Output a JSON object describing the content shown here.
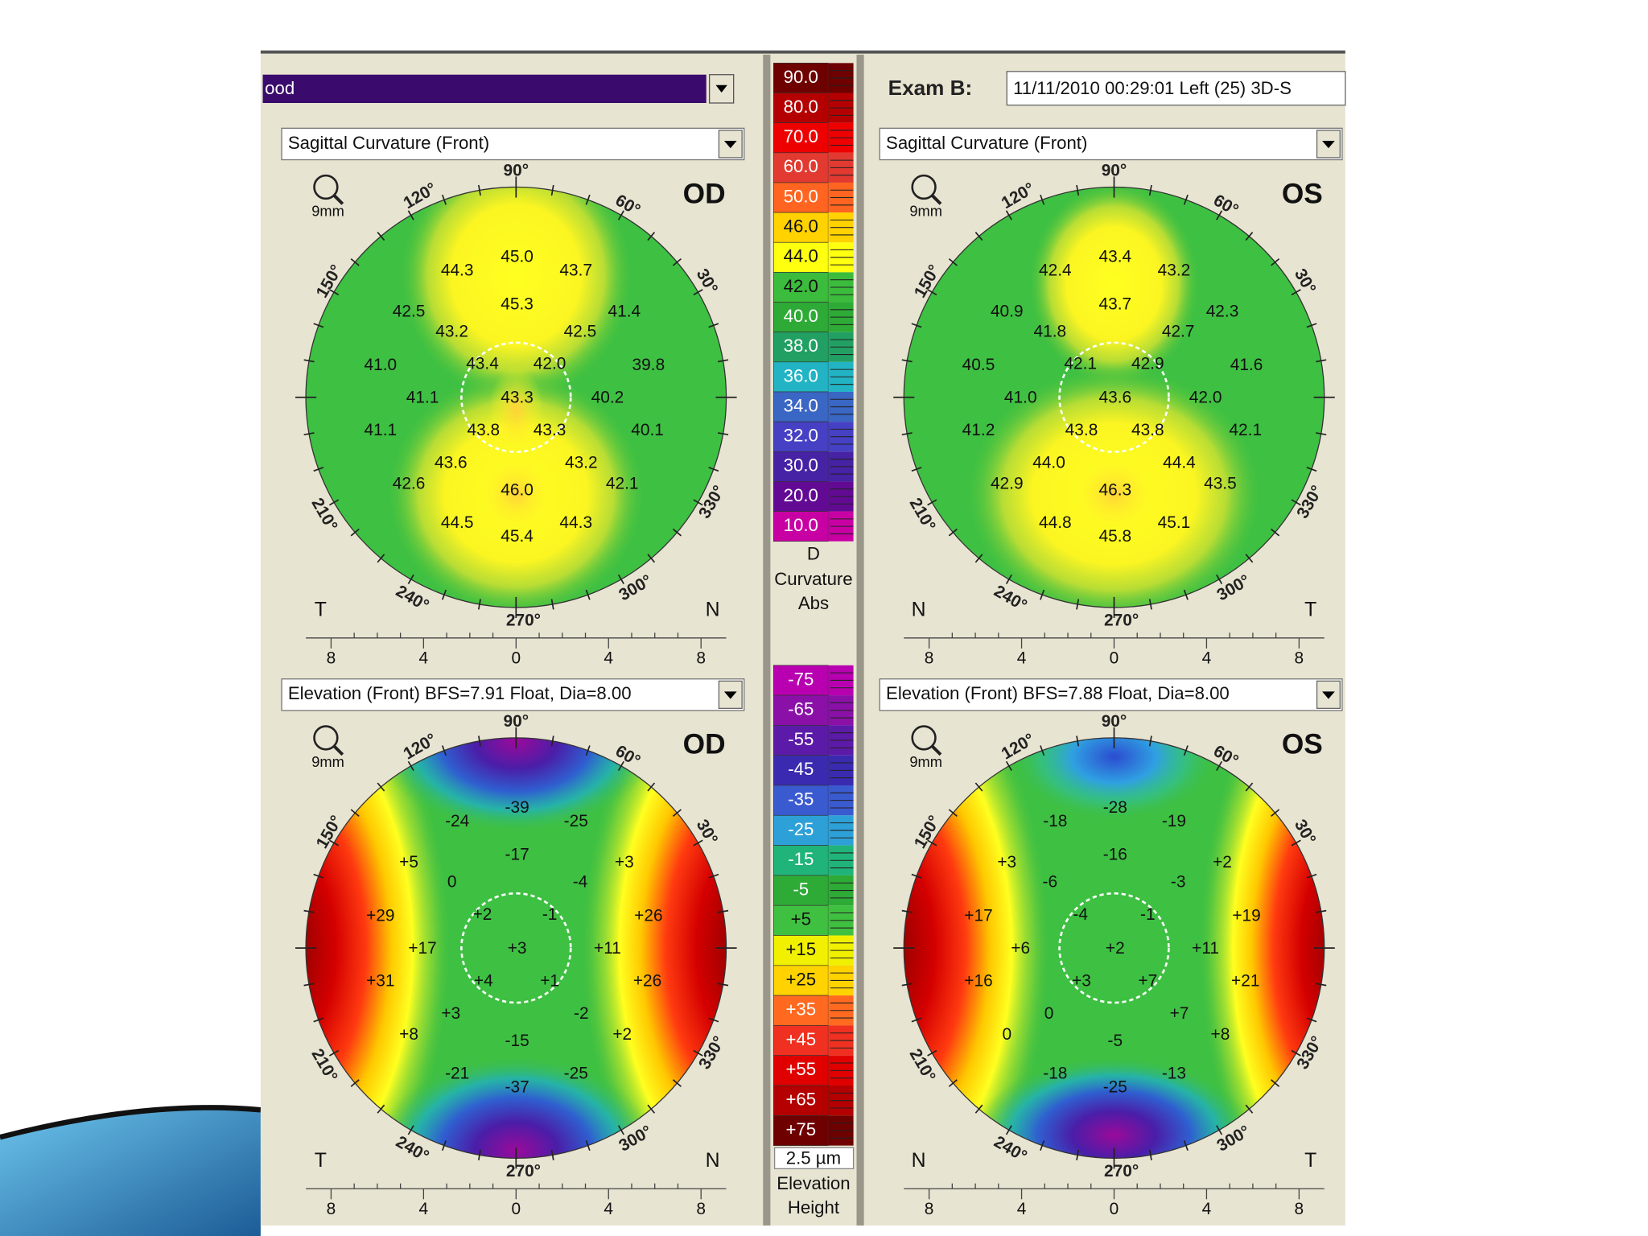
{
  "header": {
    "patient_field": "ood",
    "exam_label": "Exam B:",
    "exam_field": "11/11/2010  00:29:01  Left   (25) 3D-S"
  },
  "maps": [
    {
      "dropdown": "Sagittal Curvature (Front)",
      "eye": "OD",
      "zoom": "9mm",
      "corner_left": "T",
      "corner_right": "N",
      "angles": [
        "90°",
        "120°",
        "60°",
        "150°",
        "30°",
        "210°",
        "330°",
        "240°",
        "300°",
        "270°"
      ],
      "scale_ticks": [
        "8",
        "4",
        "0",
        "4",
        "8"
      ],
      "values": [
        "44.3",
        "45.0",
        "43.7",
        "45.3",
        "42.5",
        "41.4",
        "43.2",
        "42.5",
        "41.0",
        "43.4",
        "42.0",
        "39.8",
        "41.1",
        "43.3",
        "40.2",
        "41.1",
        "43.8",
        "43.3",
        "40.1",
        "43.6",
        "43.2",
        "42.6",
        "42.1",
        "46.0",
        "44.5",
        "45.4",
        "44.3"
      ]
    },
    {
      "dropdown": "Sagittal Curvature (Front)",
      "eye": "OS",
      "zoom": "9mm",
      "corner_left": "N",
      "corner_right": "T",
      "angles": [
        "90°",
        "120°",
        "60°",
        "150°",
        "30°",
        "210°",
        "330°",
        "240°",
        "300°",
        "270°"
      ],
      "scale_ticks": [
        "8",
        "4",
        "0",
        "4",
        "8"
      ],
      "values": [
        "42.4",
        "43.4",
        "43.2",
        "43.7",
        "40.9",
        "42.3",
        "41.8",
        "42.7",
        "40.5",
        "42.1",
        "42.9",
        "41.6",
        "41.0",
        "43.6",
        "42.0",
        "41.2",
        "43.8",
        "43.8",
        "42.1",
        "44.0",
        "44.4",
        "42.9",
        "43.5",
        "46.3",
        "44.8",
        "45.8",
        "45.1"
      ]
    },
    {
      "dropdown": "Elevation (Front)  BFS=7.91 Float, Dia=8.00",
      "eye": "OD",
      "zoom": "9mm",
      "corner_left": "T",
      "corner_right": "N",
      "angles": [
        "90°",
        "120°",
        "60°",
        "150°",
        "30°",
        "210°",
        "330°",
        "240°",
        "300°",
        "270°"
      ],
      "scale_ticks": [
        "8",
        "4",
        "0",
        "4",
        "8"
      ],
      "values": [
        "-24",
        "-39",
        "-25",
        "-17",
        "+5",
        "+3",
        "0",
        "-4",
        "+29",
        "+2",
        "-1",
        "+26",
        "+17",
        "+3",
        "+11",
        "+31",
        "+4",
        "+1",
        "+26",
        "+3",
        "-2",
        "+8",
        "+2",
        "-15",
        "-21",
        "-37",
        "-25"
      ]
    },
    {
      "dropdown": "Elevation (Front)  BFS=7.88 Float, Dia=8.00",
      "eye": "OS",
      "zoom": "9mm",
      "corner_left": "N",
      "corner_right": "T",
      "angles": [
        "90°",
        "120°",
        "60°",
        "150°",
        "30°",
        "210°",
        "330°",
        "240°",
        "300°",
        "270°"
      ],
      "scale_ticks": [
        "8",
        "4",
        "0",
        "4",
        "8"
      ],
      "values": [
        "-18",
        "-28",
        "-19",
        "-16",
        "+3",
        "+2",
        "-6",
        "-3",
        "+17",
        "-4",
        "-1",
        "+19",
        "+6",
        "+2",
        "+11",
        "+16",
        "+3",
        "+7",
        "+21",
        "0",
        "+7",
        "0",
        "+8",
        "-5",
        "-18",
        "-25",
        "-13"
      ]
    }
  ],
  "color_scales": [
    {
      "labels": [
        "90.0",
        "80.0",
        "70.0",
        "60.0",
        "50.0",
        "46.0",
        "44.0",
        "42.0",
        "40.0",
        "38.0",
        "36.0",
        "34.0",
        "32.0",
        "30.0",
        "20.0",
        "10.0"
      ],
      "unit": "D",
      "caption": [
        "Curvature",
        "Abs"
      ]
    },
    {
      "labels": [
        "-75",
        "-65",
        "-55",
        "-45",
        "-35",
        "-25",
        "-15",
        "-5",
        "+5",
        "+15",
        "+25",
        "+35",
        "+45",
        "+55",
        "+65",
        "+75"
      ],
      "unit": "2.5 µm",
      "caption": [
        "Elevation",
        "Height"
      ]
    }
  ]
}
